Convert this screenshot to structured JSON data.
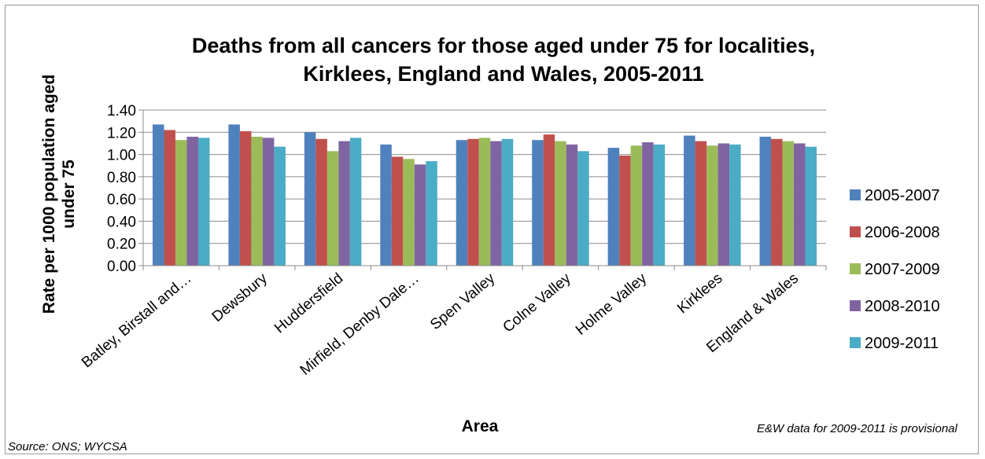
{
  "chart_data": {
    "type": "bar",
    "title_lines": [
      "Deaths from all cancers for those aged under 75 for localities,",
      "Kirklees, England and Wales, 2005-2011"
    ],
    "xlabel": "Area",
    "ylabel_lines": [
      "Rate per 1000 population aged",
      "under 75"
    ],
    "ylim": [
      0,
      1.4
    ],
    "yticks": [
      "0.00",
      "0.20",
      "0.40",
      "0.60",
      "0.80",
      "1.00",
      "1.20",
      "1.40"
    ],
    "grid": true,
    "legend_position": "right",
    "categories": [
      "Batley, Birstall and…",
      "Dewsbury",
      "Huddersfield",
      "Mirfield, Denby Dale…",
      "Spen Valley",
      "Colne Valley",
      "Holme Valley",
      "Kirklees",
      "England & Wales"
    ],
    "series": [
      {
        "name": "2005-2007",
        "color": "#4f81bd",
        "values": [
          1.27,
          1.27,
          1.2,
          1.09,
          1.13,
          1.13,
          1.06,
          1.17,
          1.16
        ]
      },
      {
        "name": "2006-2008",
        "color": "#c0504d",
        "values": [
          1.22,
          1.21,
          1.14,
          0.98,
          1.14,
          1.18,
          0.99,
          1.12,
          1.14
        ]
      },
      {
        "name": "2007-2009",
        "color": "#9bbb59",
        "values": [
          1.13,
          1.16,
          1.03,
          0.96,
          1.15,
          1.12,
          1.08,
          1.08,
          1.12
        ]
      },
      {
        "name": "2008-2010",
        "color": "#8064a2",
        "values": [
          1.16,
          1.15,
          1.12,
          0.91,
          1.12,
          1.09,
          1.11,
          1.1,
          1.1
        ]
      },
      {
        "name": "2009-2011",
        "color": "#4bacc6",
        "values": [
          1.15,
          1.07,
          1.15,
          0.94,
          1.14,
          1.03,
          1.09,
          1.09,
          1.07
        ]
      }
    ]
  },
  "notes": {
    "source": "Source: ONS; WYCSA",
    "provisional": "E&W data for 2009-2011 is provisional"
  }
}
